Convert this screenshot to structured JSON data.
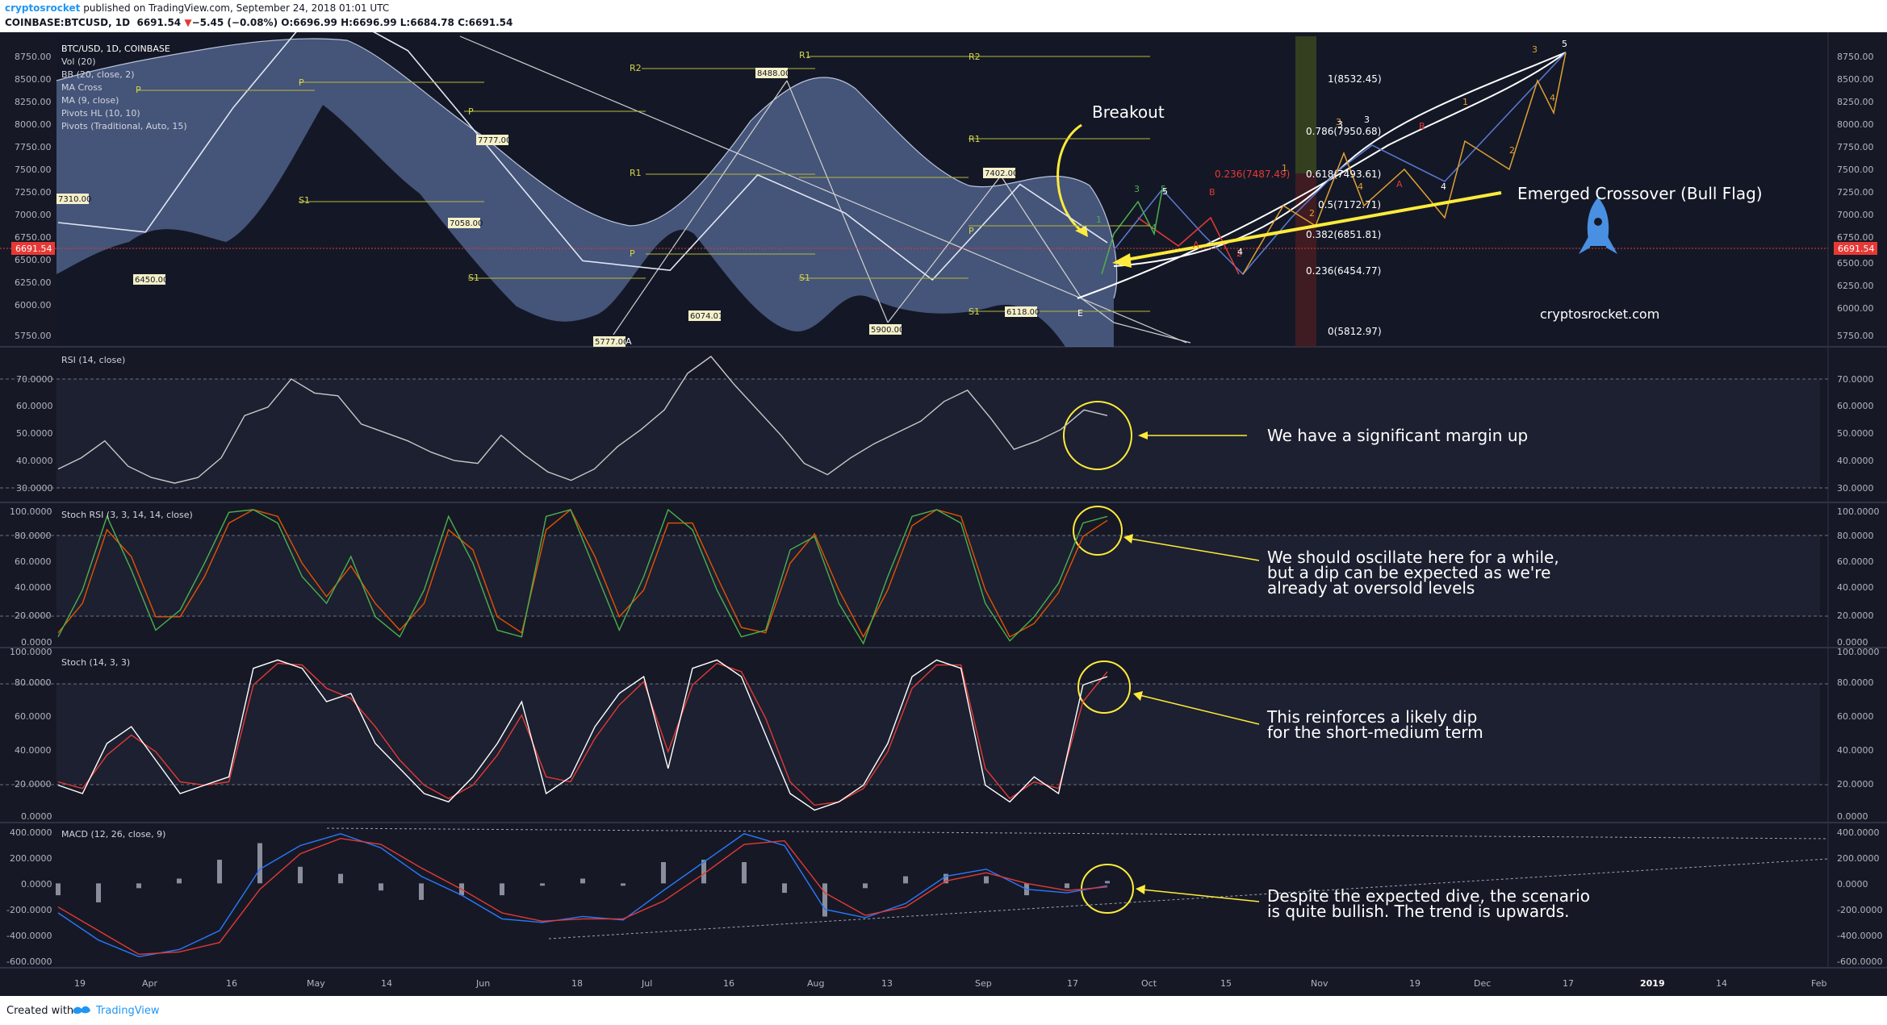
{
  "header": {
    "author": "cryptosrocket",
    "published": "published on TradingView.com, September 24, 2018 01:01 UTC",
    "symbol": "COINBASE:BTCUSD, 1D",
    "last": "6691.54",
    "change": "−5.45 (−0.08%)",
    "open": "O:6696.99",
    "high": "H:6696.99",
    "low": "L:6684.78",
    "close": "C:6691.54"
  },
  "footer": {
    "created_with": "Created with",
    "brand": "TradingView"
  },
  "colors": {
    "background": "#161925",
    "price_badge": "#e53935",
    "annotation": "#ffeb3b",
    "bands": "#7a93c8",
    "rsi_line": "#c8c8c8",
    "stoch_k": "#4caf50",
    "stoch_d": "#e65100",
    "macd_line": "#2979ff",
    "signal_line": "#e53935",
    "rocket": "#4a90e2"
  },
  "main_pane": {
    "indicator_legend": [
      "BTC/USD, 1D, COINBASE",
      "Vol (20)",
      "BB (20, close, 2)",
      "MA Cross",
      "MA (9, close)",
      "Pivots HL (10, 10)",
      "Pivots (Traditional, Auto, 15)"
    ],
    "price_axis_ticks": [
      "8750.00",
      "8500.00",
      "8250.00",
      "8000.00",
      "7750.00",
      "7500.00",
      "7250.00",
      "7000.00",
      "6750.00",
      "6500.00",
      "6250.00",
      "6000.00",
      "5750.00"
    ],
    "current_price_badge": "6691.54",
    "pivot_value_labels": [
      "7310.00",
      "6450.00",
      "7777.00",
      "7058.00",
      "5777.00",
      "8488.00",
      "6074.01",
      "5900.00",
      "7402.00",
      "6118.00"
    ],
    "pivot_level_labels": [
      "R1",
      "R2",
      "R1",
      "R2",
      "R1",
      "P",
      "P",
      "P",
      "P",
      "P",
      "S1",
      "S1",
      "S1",
      "S1"
    ],
    "wave_letters": [
      "A",
      "E"
    ],
    "fib_levels": [
      "1(8532.45)",
      "0.786(7950.68)",
      "0.618(7493.61)",
      "0.5(7172.71)",
      "0.382(6851.81)",
      "0.236(6454.77)",
      "0(5812.97)"
    ],
    "fib_extra": "0.236(7487.49)",
    "projection_labels_green": [
      "3",
      "5",
      "4",
      "1"
    ],
    "projection_labels_red": [
      "B",
      "A",
      "2"
    ],
    "projection_labels_orange": [
      "1",
      "3",
      "4",
      "2",
      "3",
      "4"
    ],
    "projection_labels_white": [
      "5",
      "3",
      "4",
      "A",
      "B",
      "1",
      "2",
      "3",
      "4",
      "5"
    ],
    "annotations": {
      "breakout": "Breakout",
      "crossover": "Emerged Crossover (Bull Flag)",
      "brand_text": "cryptosrocket.com"
    }
  },
  "rsi_pane": {
    "title": "RSI (14, close)",
    "ticks": [
      "70.0000",
      "60.0000",
      "50.0000",
      "40.0000",
      "30.0000"
    ],
    "note": "We have a significant margin up"
  },
  "stoch_rsi_pane": {
    "title": "Stoch RSI (3, 3, 14, 14, close)",
    "ticks": [
      "100.0000",
      "80.0000",
      "60.0000",
      "40.0000",
      "20.0000",
      "0.0000"
    ],
    "note_lines": [
      "We should oscillate here for a while,",
      "but a dip can be expected as we're",
      "already at oversold levels"
    ]
  },
  "stoch_pane": {
    "title": "Stoch (14, 3, 3)",
    "ticks": [
      "100.0000",
      "80.0000",
      "60.0000",
      "40.0000",
      "20.0000",
      "0.0000"
    ],
    "note_lines": [
      "This reinforces a likely dip",
      "for the short-medium term"
    ]
  },
  "macd_pane": {
    "title": "MACD (12, 26, close, 9)",
    "ticks": [
      "400.0000",
      "200.0000",
      "0.0000",
      "-200.0000",
      "-400.0000",
      "-600.0000"
    ],
    "note_lines": [
      "Despite the expected dive, the scenario",
      "is quite bullish. The trend is upwards."
    ]
  },
  "time_axis": [
    "19",
    "Apr",
    "16",
    "May",
    "14",
    "Jun",
    "18",
    "Jul",
    "16",
    "Aug",
    "13",
    "Sep",
    "17",
    "Oct",
    "15",
    "Nov",
    "19",
    "Dec",
    "17",
    "2019",
    "14",
    "Feb"
  ],
  "chart_data": {
    "type": "line",
    "symbol": "BTC/USD",
    "timeframe": "1D",
    "price": {
      "x": [
        "19",
        "Apr",
        "16",
        "May",
        "14",
        "Jun",
        "18",
        "Jul",
        "16",
        "Aug",
        "13",
        "Sep",
        "17"
      ],
      "close": [
        6900,
        6800,
        8100,
        9200,
        8700,
        7600,
        6500,
        6400,
        7400,
        7000,
        6300,
        7300,
        6690
      ],
      "ylim": [
        5600,
        8850
      ]
    },
    "rsi": {
      "series": [
        {
          "values": [
            36,
            40,
            46,
            37,
            33,
            31,
            33,
            40,
            55,
            58,
            68,
            63,
            62,
            52,
            49,
            46,
            42,
            39,
            38,
            48,
            41,
            35,
            32,
            36,
            44,
            50,
            57,
            70,
            76,
            66,
            57,
            48,
            38,
            34,
            40,
            45,
            49,
            53,
            60,
            64,
            54,
            43,
            46,
            50,
            57,
            55
          ]
        }
      ],
      "ylim": [
        25,
        78
      ]
    },
    "stoch_rsi": {
      "series": [
        {
          "name": "K",
          "values": [
            5,
            40,
            95,
            55,
            10,
            25,
            60,
            98,
            100,
            90,
            50,
            30,
            65,
            20,
            5,
            40,
            95,
            60,
            10,
            5,
            95,
            100,
            55,
            10,
            50,
            100,
            85,
            40,
            5,
            10,
            70,
            80,
            30,
            0,
            50,
            95,
            100,
            90,
            30,
            2,
            20,
            45,
            90,
            95
          ]
        },
        {
          "name": "D",
          "values": [
            8,
            30,
            85,
            65,
            20,
            20,
            50,
            90,
            100,
            95,
            60,
            35,
            58,
            30,
            10,
            30,
            85,
            70,
            20,
            8,
            85,
            100,
            65,
            20,
            40,
            90,
            90,
            50,
            12,
            8,
            60,
            82,
            40,
            5,
            40,
            88,
            100,
            95,
            40,
            5,
            15,
            38,
            80,
            92
          ]
        }
      ],
      "ylim": [
        0,
        100
      ]
    },
    "stoch": {
      "series": [
        {
          "name": "K",
          "values": [
            20,
            15,
            45,
            55,
            35,
            15,
            20,
            25,
            90,
            95,
            90,
            70,
            75,
            45,
            30,
            15,
            10,
            25,
            45,
            70,
            15,
            25,
            55,
            75,
            85,
            30,
            90,
            95,
            85,
            50,
            15,
            5,
            10,
            20,
            45,
            85,
            95,
            90,
            20,
            10,
            25,
            15,
            80,
            85
          ]
        },
        {
          "name": "D",
          "values": [
            22,
            18,
            38,
            50,
            40,
            22,
            20,
            22,
            80,
            93,
            92,
            78,
            72,
            55,
            35,
            20,
            12,
            20,
            38,
            62,
            25,
            22,
            48,
            68,
            82,
            40,
            80,
            93,
            88,
            60,
            22,
            8,
            10,
            18,
            40,
            78,
            92,
            92,
            30,
            12,
            22,
            18,
            70,
            88
          ]
        }
      ],
      "ylim": [
        0,
        100
      ]
    },
    "macd": {
      "series": [
        {
          "name": "MACD",
          "values": [
            -250,
            -480,
            -620,
            -560,
            -400,
            120,
            320,
            420,
            300,
            60,
            -100,
            -300,
            -330,
            -280,
            -310,
            -60,
            180,
            420,
            320,
            -220,
            -290,
            -170,
            60,
            120,
            -50,
            -80,
            -20
          ]
        },
        {
          "name": "Signal",
          "values": [
            -200,
            -400,
            -600,
            -580,
            -500,
            -50,
            250,
            380,
            330,
            130,
            -50,
            -250,
            -320,
            -300,
            -300,
            -150,
            80,
            330,
            360,
            -80,
            -270,
            -200,
            20,
            90,
            0,
            -60,
            -30
          ]
        }
      ],
      "ylim": [
        -700,
        480
      ]
    }
  }
}
